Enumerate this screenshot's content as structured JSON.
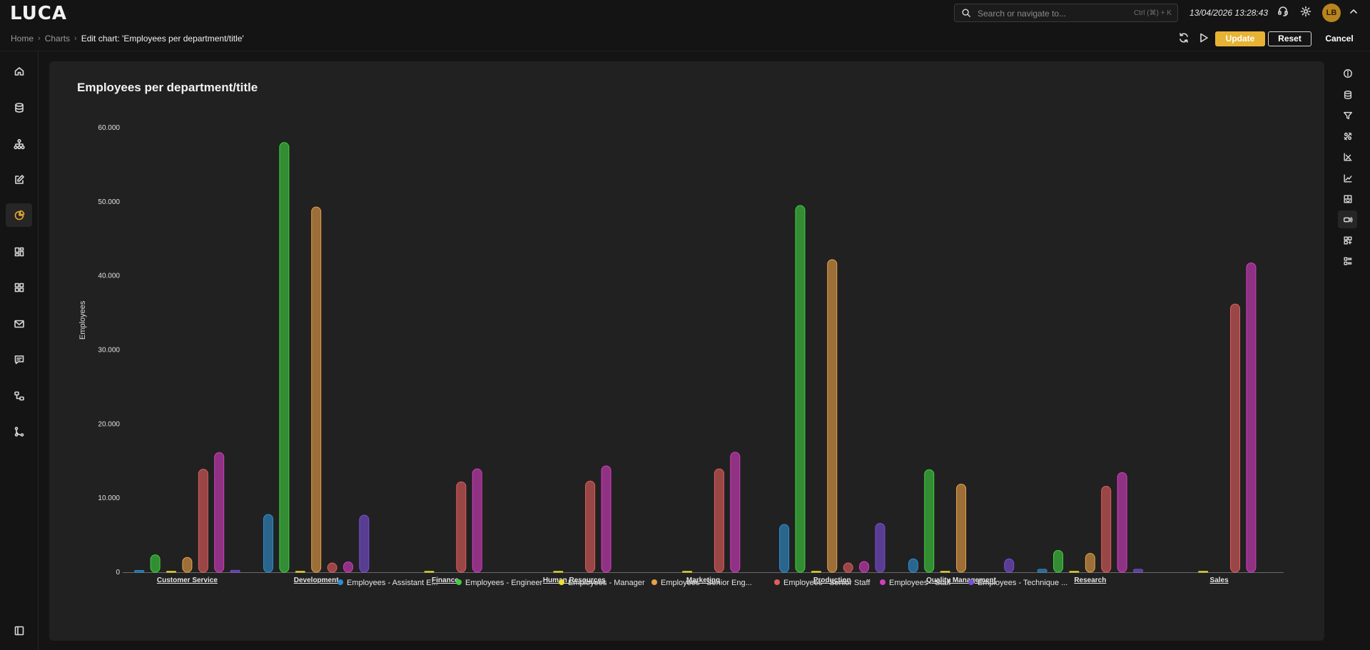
{
  "app": {
    "logo": "LUCA"
  },
  "search": {
    "placeholder": "Search or navigate to...",
    "shortcut": "Ctrl (⌘) + K"
  },
  "clock": "13/04/2026 13:28:43",
  "user": {
    "initials": "LB"
  },
  "breadcrumb": {
    "home": "Home",
    "charts": "Charts",
    "current": "Edit chart: 'Employees per department/title'"
  },
  "actions": {
    "update": "Update",
    "reset": "Reset",
    "cancel": "Cancel"
  },
  "chart_data": {
    "type": "bar",
    "title": "Employees per department/title",
    "xlabel": "",
    "ylabel": "Employees",
    "ylim": [
      0,
      60000
    ],
    "yticks": [
      0,
      10000,
      20000,
      30000,
      40000,
      50000,
      60000
    ],
    "ytick_labels": [
      "0",
      "10.000",
      "20.000",
      "30.000",
      "40.000",
      "50.000",
      "60.000"
    ],
    "grid": false,
    "legend": "bottom",
    "categories": [
      "Customer Service",
      "Development",
      "Finance",
      "Human Resources",
      "Marketing",
      "Production",
      "Quality Management",
      "Research",
      "Sales"
    ],
    "series": [
      {
        "name": "Employees - Assistant E...",
        "color": "#2f8fd0",
        "values": [
          240,
          7800,
          0,
          0,
          0,
          6450,
          1800,
          400,
          0
        ]
      },
      {
        "name": "Employees - Engineer",
        "color": "#3fd13f",
        "values": [
          2350,
          58000,
          0,
          0,
          0,
          49500,
          13850,
          2950,
          0
        ]
      },
      {
        "name": "Employees - Manager",
        "color": "#f0e030",
        "values": [
          4,
          2,
          2,
          2,
          2,
          4,
          4,
          2,
          3
        ]
      },
      {
        "name": "Employees - Senior Eng...",
        "color": "#e8a048",
        "values": [
          2000,
          49300,
          0,
          0,
          0,
          42200,
          11900,
          2550,
          0
        ]
      },
      {
        "name": "Employees - Senior Staff",
        "color": "#e35e5e",
        "values": [
          13900,
          1250,
          12200,
          12300,
          13950,
          1250,
          0,
          11600,
          36200
        ]
      },
      {
        "name": "Employees - Staff",
        "color": "#d33ec0",
        "values": [
          16150,
          1400,
          13950,
          14350,
          16200,
          1450,
          0,
          13450,
          41750
        ]
      },
      {
        "name": "Employees - Technique ...",
        "color": "#7a4fd8",
        "values": [
          250,
          7700,
          0,
          0,
          0,
          6600,
          1800,
          400,
          0
        ]
      }
    ]
  }
}
